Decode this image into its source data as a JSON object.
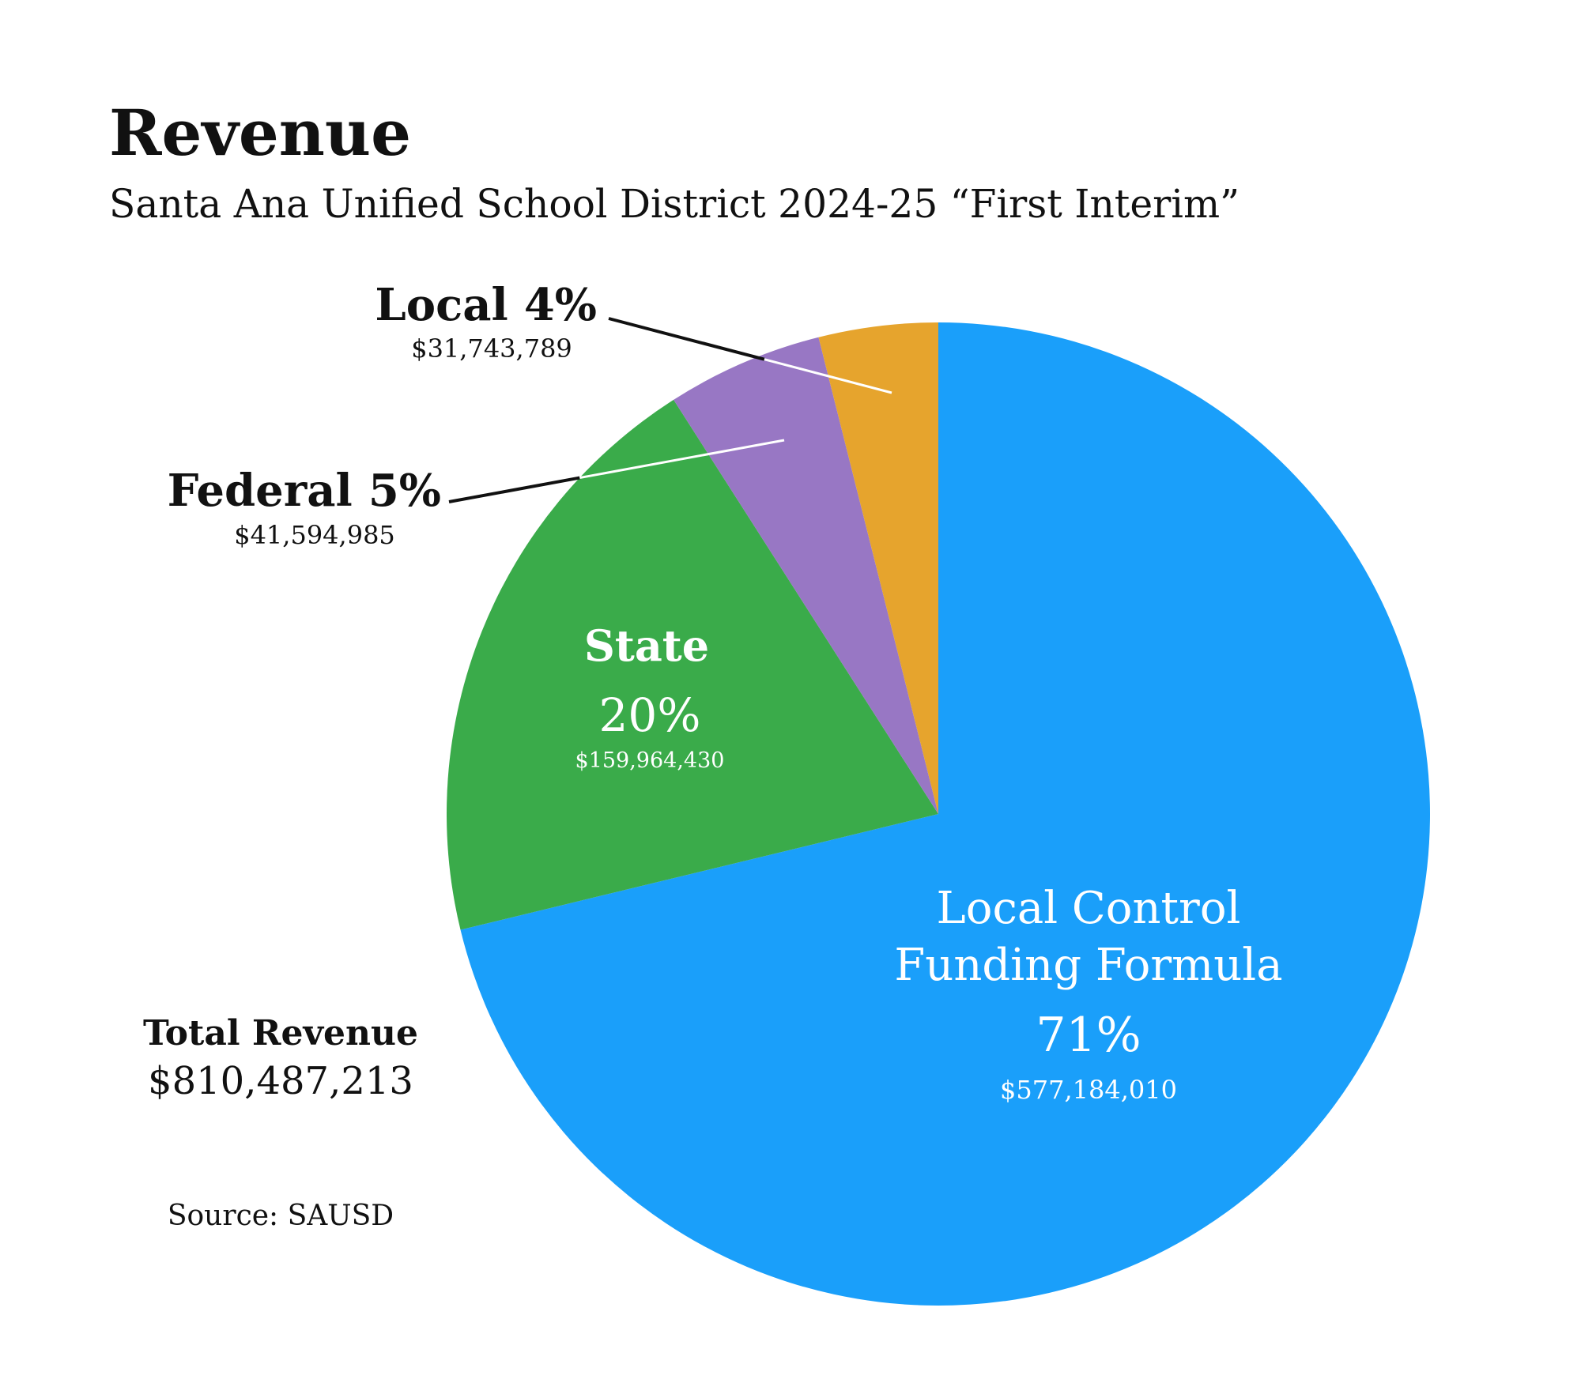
{
  "chart_data": {
    "type": "pie",
    "title": "Revenue",
    "subtitle": "Santa Ana Unified School District 2024-25 “First Interim”",
    "slices": [
      {
        "label_lines": [
          "Local Control",
          "Funding Formula"
        ],
        "percent_label": "71%",
        "value": 577184010,
        "value_label": "$577,184,010",
        "color": "#1a9ffa"
      },
      {
        "label_lines": [
          "State"
        ],
        "percent_label": "20%",
        "value": 159964430,
        "value_label": "$159,964,430",
        "color": "#3aab4a"
      },
      {
        "label_lines": [
          "Federal"
        ],
        "percent_label": "5%",
        "value": 41594985,
        "value_label": "$41,594,985",
        "color": "#9877c4"
      },
      {
        "label_lines": [
          "Local"
        ],
        "percent_label": "4%",
        "value": 31743789,
        "value_label": "$31,743,789",
        "color": "#e6a42d"
      }
    ],
    "total_label": "Total Revenue",
    "total_value": "$810,487,213",
    "source": "Source: SAUSD"
  }
}
